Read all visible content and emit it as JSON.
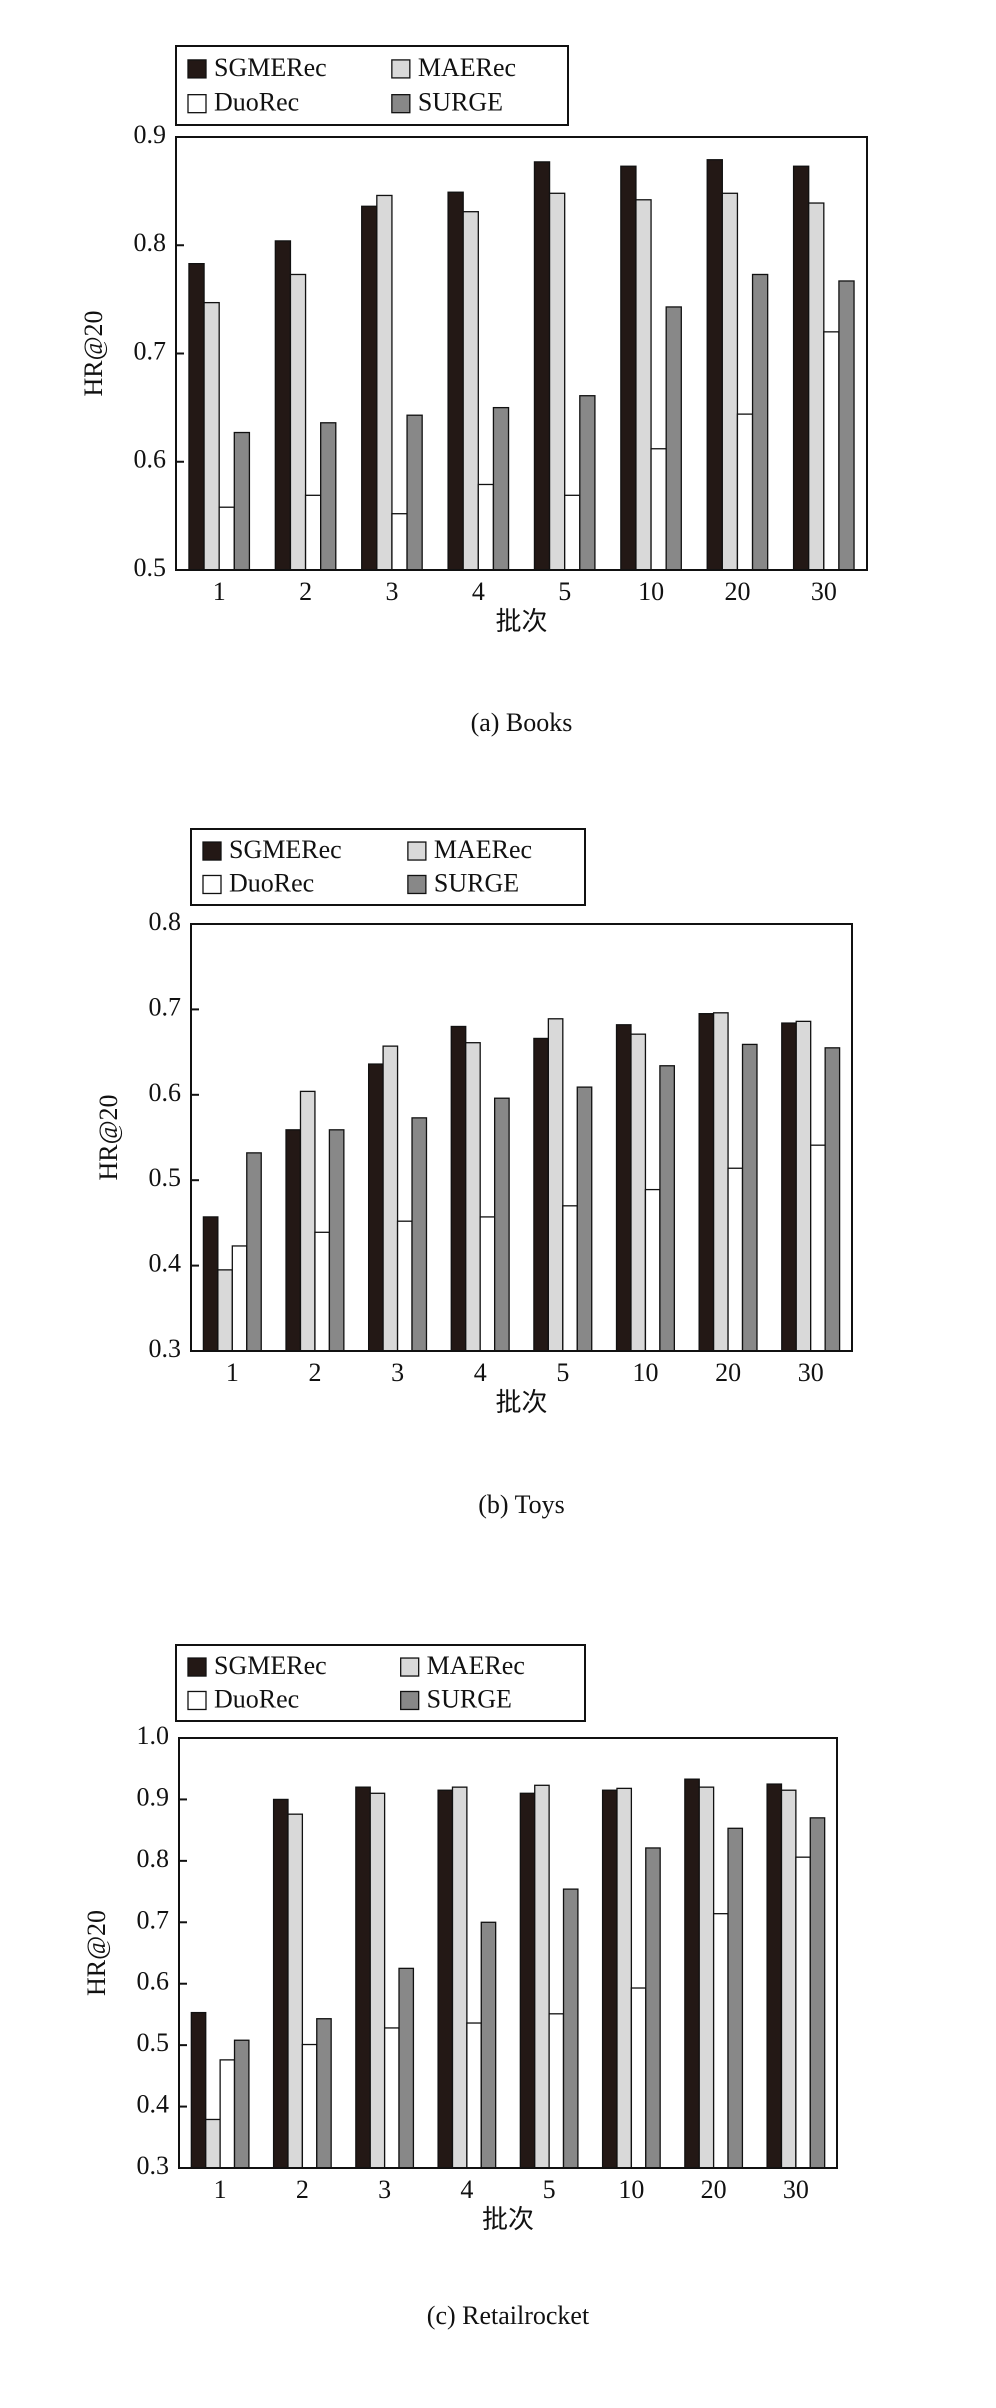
{
  "chart_data": [
    {
      "type": "bar",
      "caption": "(a) Books",
      "xlabel": "批次",
      "ylabel": "HR@20",
      "categories": [
        "1",
        "2",
        "3",
        "4",
        "5",
        "10",
        "20",
        "30"
      ],
      "ylim": [
        0.5,
        0.9
      ],
      "yticks": [
        0.5,
        0.6,
        0.7,
        0.8,
        0.9
      ],
      "grid": false,
      "series": [
        {
          "name": "SGMERec",
          "color": "#231815",
          "values": [
            0.783,
            0.804,
            0.836,
            0.849,
            0.877,
            0.873,
            0.879,
            0.873
          ]
        },
        {
          "name": "MAERec",
          "color": "#d9d9d9",
          "values": [
            0.747,
            0.773,
            0.846,
            0.831,
            0.848,
            0.842,
            0.848,
            0.839
          ]
        },
        {
          "name": "DuoRec",
          "color": "#ffffff",
          "values": [
            0.558,
            0.569,
            0.552,
            0.579,
            0.569,
            0.612,
            0.644,
            0.72
          ]
        },
        {
          "name": "SURGE",
          "color": "#888888",
          "values": [
            0.627,
            0.636,
            0.643,
            0.65,
            0.661,
            0.743,
            0.773,
            0.767
          ]
        }
      ]
    },
    {
      "type": "bar",
      "caption": "(b) Toys",
      "xlabel": "批次",
      "ylabel": "HR@20",
      "categories": [
        "1",
        "2",
        "3",
        "4",
        "5",
        "10",
        "20",
        "30"
      ],
      "ylim": [
        0.3,
        0.8
      ],
      "yticks": [
        0.3,
        0.4,
        0.5,
        0.6,
        0.7,
        0.8
      ],
      "grid": false,
      "series": [
        {
          "name": "SGMERec",
          "color": "#231815",
          "values": [
            0.457,
            0.559,
            0.636,
            0.68,
            0.666,
            0.682,
            0.695,
            0.684
          ]
        },
        {
          "name": "MAERec",
          "color": "#d9d9d9",
          "values": [
            0.395,
            0.604,
            0.657,
            0.661,
            0.689,
            0.671,
            0.696,
            0.686
          ]
        },
        {
          "name": "DuoRec",
          "color": "#ffffff",
          "values": [
            0.423,
            0.439,
            0.452,
            0.457,
            0.47,
            0.489,
            0.514,
            0.541
          ]
        },
        {
          "name": "SURGE",
          "color": "#888888",
          "values": [
            0.532,
            0.559,
            0.573,
            0.596,
            0.609,
            0.634,
            0.659,
            0.655
          ]
        }
      ]
    },
    {
      "type": "bar",
      "caption": "(c) Retailrocket",
      "xlabel": "批次",
      "ylabel": "HR@20",
      "categories": [
        "1",
        "2",
        "3",
        "4",
        "5",
        "10",
        "20",
        "30"
      ],
      "ylim": [
        0.3,
        1.0
      ],
      "yticks": [
        0.3,
        0.4,
        0.5,
        0.6,
        0.7,
        0.8,
        0.9,
        {
          "value": 1.0,
          "label": "1.0"
        }
      ],
      "grid": false,
      "series": [
        {
          "name": "SGMERec",
          "color": "#231815",
          "values": [
            0.553,
            0.9,
            0.92,
            0.915,
            0.91,
            0.915,
            0.933,
            0.925
          ]
        },
        {
          "name": "MAERec",
          "color": "#d9d9d9",
          "values": [
            0.379,
            0.876,
            0.91,
            0.92,
            0.923,
            0.918,
            0.92,
            0.915
          ]
        },
        {
          "name": "DuoRec",
          "color": "#ffffff",
          "values": [
            0.476,
            0.501,
            0.528,
            0.536,
            0.551,
            0.593,
            0.714,
            0.806
          ]
        },
        {
          "name": "SURGE",
          "color": "#888888",
          "values": [
            0.508,
            0.543,
            0.625,
            0.7,
            0.754,
            0.821,
            0.853,
            0.87
          ]
        }
      ]
    }
  ]
}
